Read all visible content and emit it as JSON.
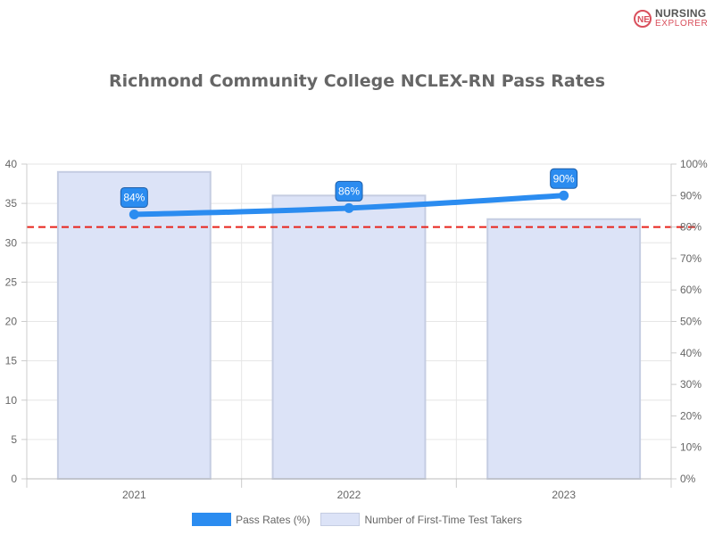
{
  "logo": {
    "line1": "NURSING",
    "line2": "EXPLORER",
    "mark": "NE"
  },
  "chart_data": {
    "type": "bar",
    "title": "Richmond Community College NCLEX-RN Pass Rates",
    "categories": [
      "2021",
      "2022",
      "2023"
    ],
    "series": [
      {
        "name": "Pass Rates (%)",
        "type": "line",
        "axis": "right",
        "values": [
          84,
          86,
          90
        ],
        "data_labels": [
          "84%",
          "86%",
          "90%"
        ],
        "color": "#2b8cf0"
      },
      {
        "name": "Number of First-Time Test Takers",
        "type": "bar",
        "axis": "left",
        "values": [
          39,
          36,
          33
        ],
        "color": "#dce3f7",
        "border_color": "#c5cde2"
      }
    ],
    "y_left": {
      "ylim": [
        0,
        40
      ],
      "ticks": [
        "0",
        "5",
        "10",
        "15",
        "20",
        "25",
        "30",
        "35",
        "40"
      ]
    },
    "y_right": {
      "ylim": [
        0,
        100
      ],
      "ticks": [
        "0%",
        "10%",
        "20%",
        "30%",
        "40%",
        "50%",
        "60%",
        "70%",
        "80%",
        "90%",
        "100%"
      ]
    },
    "reference_line": {
      "axis": "right",
      "value": 80,
      "color": "#e8231b",
      "style": "dashed"
    },
    "grid": true,
    "legend": "bottom"
  }
}
